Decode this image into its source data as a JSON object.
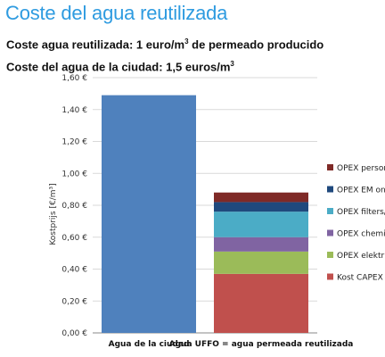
{
  "header": {
    "title": "Coste del agua reutilizada",
    "line1_text": "Coste agua reutilizada: 1 euro/m",
    "line1_sup": "3",
    "line1_tail": " de permeado producido",
    "line2_text": "Coste del agua de la ciudad: 1,5 euros/m",
    "line2_sup": "3"
  },
  "chart_data": {
    "type": "bar",
    "stacked": true,
    "title": "",
    "ylabel": "Kostprijs [€/m³]",
    "xlabel": "",
    "ylim": [
      0,
      1.6
    ],
    "ytick_step": 0.2,
    "ytick_labels": [
      "0,00 €",
      "0,20 €",
      "0,40 €",
      "0,60 €",
      "0,80 €",
      "1,00 €",
      "1,20 €",
      "1,40 €",
      "1,60 €"
    ],
    "categories": [
      "Agua de la ciudad",
      "Agua UFFO = agua permeada reutilizada"
    ],
    "grid": true,
    "legend_position": "right",
    "series": [
      {
        "name": "Agua de la ciudad",
        "color": "#4f81bd",
        "values": [
          1.49,
          0
        ],
        "in_legend": false
      },
      {
        "name": "Kost CAPEX a",
        "color": "#c0504d",
        "values": [
          0,
          0.37
        ],
        "in_legend": true
      },
      {
        "name": "OPEX elektri",
        "color": "#9bbb59",
        "values": [
          0,
          0.14
        ],
        "in_legend": true
      },
      {
        "name": "OPEX chemic",
        "color": "#8064a2",
        "values": [
          0,
          0.09
        ],
        "in_legend": true
      },
      {
        "name": "OPEX filters/",
        "color": "#4bacc6",
        "values": [
          0,
          0.16
        ],
        "in_legend": true
      },
      {
        "name": "OPEX EM on",
        "color": "#1f497d",
        "values": [
          0,
          0.06
        ],
        "in_legend": true
      },
      {
        "name": "OPEX persor",
        "color": "#7f2a27",
        "values": [
          0,
          0.06
        ],
        "in_legend": true
      }
    ]
  }
}
